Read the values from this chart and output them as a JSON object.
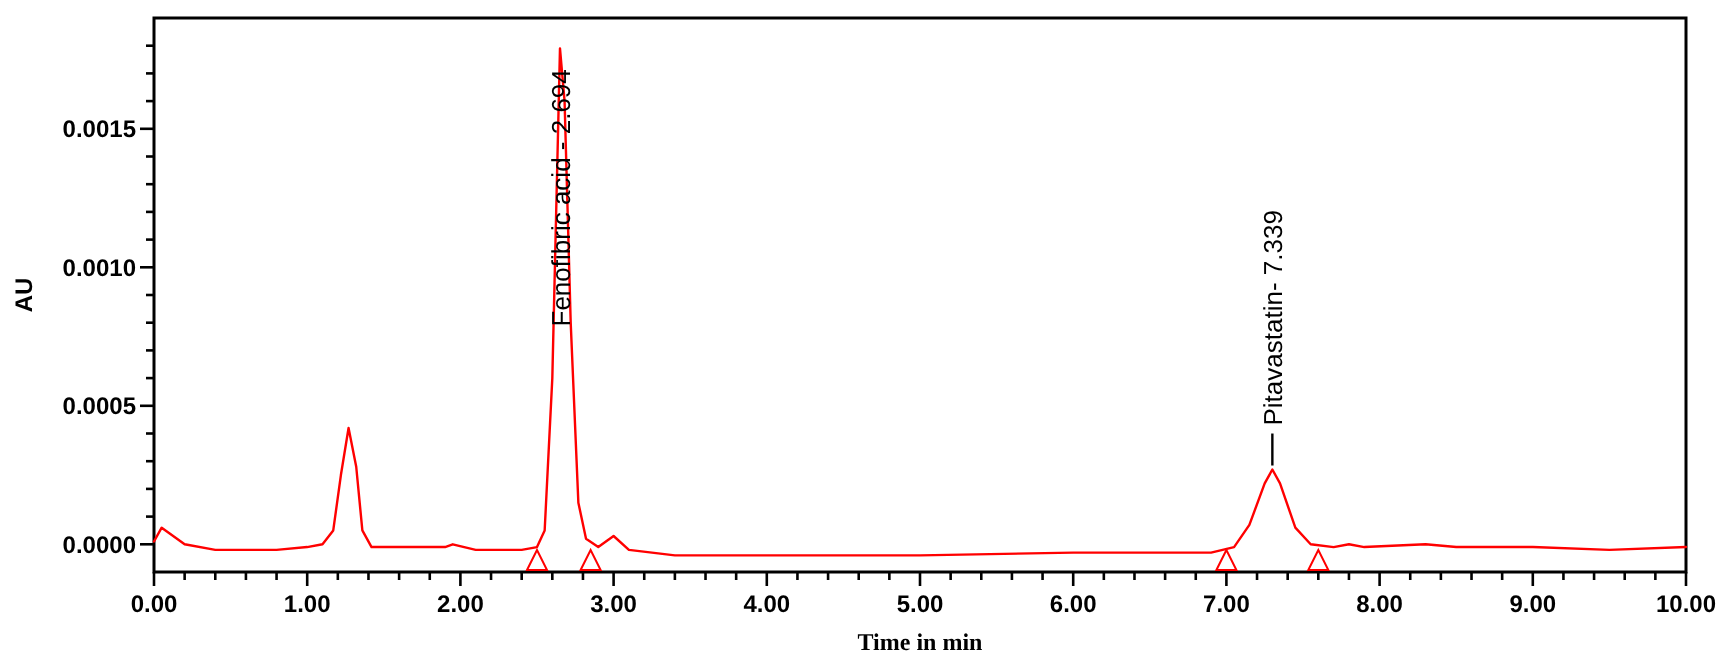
{
  "chart_data": {
    "type": "line",
    "xlabel": "Time in min",
    "ylabel": "AU",
    "x": [
      0,
      0.05,
      0.1,
      0.2,
      0.4,
      0.8,
      1.0,
      1.1,
      1.17,
      1.22,
      1.27,
      1.32,
      1.36,
      1.42,
      1.6,
      1.9,
      1.95,
      2.1,
      2.4,
      2.5,
      2.55,
      2.6,
      2.65,
      2.68,
      2.72,
      2.77,
      2.82,
      2.9,
      3.0,
      3.1,
      3.4,
      4.0,
      5.0,
      6.0,
      6.9,
      7.05,
      7.15,
      7.25,
      7.3,
      7.35,
      7.45,
      7.55,
      7.7,
      7.8,
      7.9,
      8.3,
      8.5,
      9.0,
      9.5,
      10.0
    ],
    "series": [
      {
        "color": "#ff0000",
        "values": [
          1e-05,
          6e-05,
          4e-05,
          0.0,
          -2e-05,
          -2e-05,
          -1e-05,
          0.0,
          5e-05,
          0.00025,
          0.00042,
          0.00028,
          5e-05,
          -1e-05,
          -1e-05,
          -1e-05,
          0.0,
          -2e-05,
          -2e-05,
          -1e-05,
          5e-05,
          0.0006,
          0.00179,
          0.0016,
          0.0008,
          0.00015,
          2e-05,
          -1e-05,
          3e-05,
          -2e-05,
          -4e-05,
          -4e-05,
          -4e-05,
          -3e-05,
          -3e-05,
          -1e-05,
          7e-05,
          0.00022,
          0.00027,
          0.00022,
          6e-05,
          0.0,
          -1e-05,
          0.0,
          -1e-05,
          0.0,
          -1e-05,
          -1e-05,
          -2e-05,
          -1e-05
        ]
      }
    ],
    "xlim": [
      0,
      10
    ],
    "xticks": [
      {
        "value": 0,
        "label": "0.00"
      },
      {
        "value": 0.2,
        "label": null
      },
      {
        "value": 0.4,
        "label": null
      },
      {
        "value": 0.6,
        "label": null
      },
      {
        "value": 0.8,
        "label": null
      },
      {
        "value": 1,
        "label": "1.00"
      },
      {
        "value": 1.2,
        "label": null
      },
      {
        "value": 1.4,
        "label": null
      },
      {
        "value": 1.6,
        "label": null
      },
      {
        "value": 1.8,
        "label": null
      },
      {
        "value": 2,
        "label": "2.00"
      },
      {
        "value": 2.2,
        "label": null
      },
      {
        "value": 2.4,
        "label": null
      },
      {
        "value": 2.6,
        "label": null
      },
      {
        "value": 2.8,
        "label": null
      },
      {
        "value": 3,
        "label": "3.00"
      },
      {
        "value": 3.2,
        "label": null
      },
      {
        "value": 3.4,
        "label": null
      },
      {
        "value": 3.6,
        "label": null
      },
      {
        "value": 3.8,
        "label": null
      },
      {
        "value": 4,
        "label": "4.00"
      },
      {
        "value": 4.2,
        "label": null
      },
      {
        "value": 4.4,
        "label": null
      },
      {
        "value": 4.6,
        "label": null
      },
      {
        "value": 4.8,
        "label": null
      },
      {
        "value": 5,
        "label": "5.00"
      },
      {
        "value": 5.2,
        "label": null
      },
      {
        "value": 5.4,
        "label": null
      },
      {
        "value": 5.6,
        "label": null
      },
      {
        "value": 5.8,
        "label": null
      },
      {
        "value": 6,
        "label": "6.00"
      },
      {
        "value": 6.2,
        "label": null
      },
      {
        "value": 6.4,
        "label": null
      },
      {
        "value": 6.6,
        "label": null
      },
      {
        "value": 6.8,
        "label": null
      },
      {
        "value": 7,
        "label": "7.00"
      },
      {
        "value": 7.2,
        "label": null
      },
      {
        "value": 7.4,
        "label": null
      },
      {
        "value": 7.6,
        "label": null
      },
      {
        "value": 7.8,
        "label": null
      },
      {
        "value": 8,
        "label": "8.00"
      },
      {
        "value": 8.2,
        "label": null
      },
      {
        "value": 8.4,
        "label": null
      },
      {
        "value": 8.6,
        "label": null
      },
      {
        "value": 8.8,
        "label": null
      },
      {
        "value": 9,
        "label": "9.00"
      },
      {
        "value": 9.2,
        "label": null
      },
      {
        "value": 9.4,
        "label": null
      },
      {
        "value": 9.6,
        "label": null
      },
      {
        "value": 9.8,
        "label": null
      },
      {
        "value": 10,
        "label": "10.00"
      }
    ],
    "ylim": [
      -0.0001,
      0.0019
    ],
    "yticks": [
      {
        "value": 0,
        "label": "0.0000"
      },
      {
        "value": 0.0001,
        "label": null
      },
      {
        "value": 0.0002,
        "label": null
      },
      {
        "value": 0.0003,
        "label": null
      },
      {
        "value": 0.0004,
        "label": null
      },
      {
        "value": 0.0005,
        "label": "0.0005"
      },
      {
        "value": 0.0006,
        "label": null
      },
      {
        "value": 0.0007,
        "label": null
      },
      {
        "value": 0.0008,
        "label": null
      },
      {
        "value": 0.0009,
        "label": null
      },
      {
        "value": 0.001,
        "label": "0.0010"
      },
      {
        "value": 0.0011,
        "label": null
      },
      {
        "value": 0.0012,
        "label": null
      },
      {
        "value": 0.0013,
        "label": null
      },
      {
        "value": 0.0014,
        "label": null
      },
      {
        "value": 0.0015,
        "label": "0.0015"
      },
      {
        "value": 0.0016,
        "label": null
      },
      {
        "value": 0.0017,
        "label": null
      },
      {
        "value": 0.0018,
        "label": null
      }
    ],
    "annotations": [
      {
        "text": "Fenofibric acid - 2.694",
        "x": 2.65,
        "y": 0.00179
      },
      {
        "text": "Pitavastatin- 7.339",
        "x": 7.3,
        "y": 0.00027
      }
    ],
    "grid": false,
    "marker": "none",
    "line_style": "solid"
  }
}
